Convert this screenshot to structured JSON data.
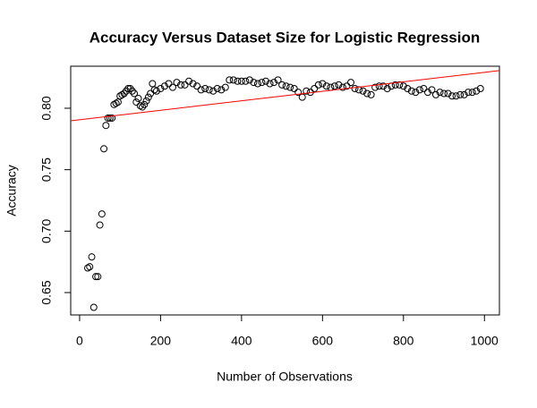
{
  "chart_data": {
    "type": "scatter",
    "title": "Accuracy Versus Dataset Size for Logistic Regression",
    "x_label": "Number of Observations",
    "y_label": "Accuracy",
    "x": [
      20,
      25,
      30,
      35,
      40,
      45,
      50,
      55,
      60,
      65,
      70,
      75,
      80,
      85,
      90,
      95,
      100,
      105,
      110,
      115,
      120,
      125,
      130,
      135,
      140,
      145,
      150,
      155,
      160,
      165,
      170,
      175,
      180,
      185,
      190,
      200,
      210,
      220,
      230,
      240,
      250,
      260,
      270,
      280,
      290,
      300,
      310,
      320,
      330,
      340,
      350,
      360,
      370,
      380,
      390,
      400,
      410,
      420,
      430,
      440,
      450,
      460,
      470,
      480,
      490,
      500,
      510,
      520,
      530,
      540,
      550,
      560,
      570,
      580,
      590,
      600,
      610,
      620,
      630,
      640,
      650,
      660,
      670,
      680,
      690,
      700,
      710,
      720,
      730,
      740,
      750,
      760,
      770,
      780,
      790,
      800,
      810,
      820,
      830,
      840,
      850,
      860,
      870,
      880,
      890,
      900,
      910,
      920,
      930,
      940,
      950,
      960,
      970,
      980,
      990
    ],
    "values": [
      0.67,
      0.671,
      0.679,
      0.638,
      0.663,
      0.663,
      0.705,
      0.714,
      0.767,
      0.786,
      0.792,
      0.792,
      0.792,
      0.803,
      0.804,
      0.805,
      0.81,
      0.811,
      0.812,
      0.814,
      0.816,
      0.816,
      0.814,
      0.812,
      0.805,
      0.808,
      0.802,
      0.801,
      0.803,
      0.806,
      0.809,
      0.812,
      0.82,
      0.815,
      0.814,
      0.816,
      0.818,
      0.82,
      0.817,
      0.821,
      0.819,
      0.819,
      0.822,
      0.82,
      0.818,
      0.815,
      0.816,
      0.815,
      0.814,
      0.816,
      0.815,
      0.817,
      0.823,
      0.823,
      0.822,
      0.822,
      0.822,
      0.823,
      0.821,
      0.82,
      0.821,
      0.822,
      0.82,
      0.821,
      0.823,
      0.819,
      0.818,
      0.817,
      0.816,
      0.813,
      0.809,
      0.814,
      0.813,
      0.816,
      0.819,
      0.82,
      0.818,
      0.817,
      0.818,
      0.819,
      0.817,
      0.818,
      0.821,
      0.816,
      0.815,
      0.814,
      0.812,
      0.811,
      0.817,
      0.818,
      0.818,
      0.816,
      0.818,
      0.819,
      0.819,
      0.818,
      0.816,
      0.814,
      0.813,
      0.815,
      0.816,
      0.813,
      0.815,
      0.811,
      0.813,
      0.812,
      0.812,
      0.81,
      0.81,
      0.811,
      0.811,
      0.813,
      0.813,
      0.814,
      0.816
    ],
    "color": "#000000",
    "trend_line": {
      "intercept": 0.7906,
      "slope": 3.86e-05,
      "color": "#ff0000"
    },
    "xlim": [
      -22,
      1037
    ],
    "ylim": [
      0.6318,
      0.8342
    ],
    "xticks": [
      0,
      200,
      400,
      600,
      800,
      1000
    ],
    "yticks": [
      0.65,
      {
        "value": 0.7,
        "label": "0.70"
      },
      0.75,
      {
        "value": 0.8,
        "label": "0.80"
      }
    ]
  }
}
